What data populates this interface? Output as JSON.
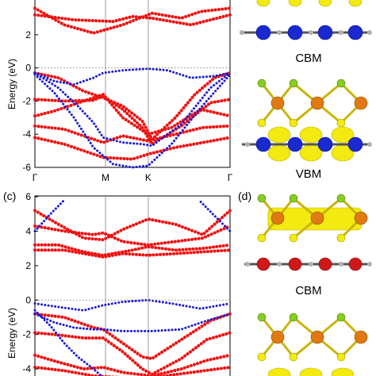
{
  "figure": {
    "panels": {
      "top_left": {
        "label": ""
      },
      "bottom_left": {
        "label": "(c)"
      },
      "bottom_right": {
        "label": "(d)"
      }
    },
    "labels": {
      "top_cbm": "CBM",
      "top_vbm": "VBM",
      "bottom_cbm": "CBM"
    },
    "colors": {
      "red_projection": "#ee1111",
      "blue_projection": "#1a1ad6",
      "atom_blue": "#1a2ad0",
      "atom_red": "#d01818",
      "atom_orange": "#e07a10",
      "atom_green": "#88cc22",
      "atom_gray": "#b0b0b0",
      "isosurface_yellow": "#f2ea10"
    },
    "icons": [
      "atom-structure-illustration",
      "charge-density-isosurface"
    ]
  },
  "chart_data": [
    {
      "type": "line",
      "panel": "top band structure",
      "ylabel": "Energy (eV)",
      "ylim": [
        -6,
        4
      ],
      "yticks": [
        2,
        0,
        -2,
        -4,
        -6
      ],
      "xticks": [
        "Γ",
        "M",
        "K",
        "Γ"
      ],
      "fermi_level": 0,
      "grid": false,
      "series": [
        {
          "color": "red",
          "style": "dots",
          "bands": [
            [
              [
                0,
                3.6
              ],
              [
                0.15,
                2.6
              ],
              [
                0.3,
                2.1
              ],
              [
                0.45,
                2.6
              ],
              [
                0.6,
                3.3
              ],
              [
                0.75,
                3.0
              ],
              [
                0.85,
                3.4
              ],
              [
                1,
                3.6
              ]
            ],
            [
              [
                0,
                3.2
              ],
              [
                0.2,
                2.9
              ],
              [
                0.4,
                2.8
              ],
              [
                0.5,
                3.1
              ],
              [
                0.6,
                3.0
              ],
              [
                0.8,
                2.6
              ],
              [
                1,
                3.2
              ]
            ],
            [
              [
                0,
                -0.3
              ],
              [
                0.12,
                -0.6
              ],
              [
                0.25,
                -1.4
              ],
              [
                0.35,
                -1.8
              ],
              [
                0.45,
                -2.3
              ],
              [
                0.55,
                -3.2
              ],
              [
                0.6,
                -4.3
              ],
              [
                0.72,
                -3.0
              ],
              [
                0.82,
                -1.6
              ],
              [
                0.92,
                -0.6
              ],
              [
                1,
                -0.3
              ]
            ],
            [
              [
                0,
                -1.9
              ],
              [
                0.15,
                -2.0
              ],
              [
                0.3,
                -1.95
              ],
              [
                0.35,
                -1.7
              ],
              [
                0.45,
                -2.5
              ],
              [
                0.55,
                -3.6
              ],
              [
                0.6,
                -4.6
              ],
              [
                0.75,
                -3.5
              ],
              [
                0.9,
                -2.1
              ],
              [
                1,
                -1.9
              ]
            ],
            [
              [
                0,
                -2.9
              ],
              [
                0.1,
                -2.6
              ],
              [
                0.2,
                -2.2
              ],
              [
                0.3,
                -1.8
              ],
              [
                0.35,
                -1.6
              ],
              [
                0.45,
                -3.0
              ],
              [
                0.58,
                -4.0
              ],
              [
                0.7,
                -3.6
              ],
              [
                0.85,
                -2.5
              ],
              [
                1,
                -2.9
              ]
            ],
            [
              [
                0,
                -3.5
              ],
              [
                0.15,
                -3.7
              ],
              [
                0.3,
                -4.3
              ],
              [
                0.35,
                -4.5
              ],
              [
                0.45,
                -4.1
              ],
              [
                0.58,
                -4.4
              ],
              [
                0.72,
                -4.0
              ],
              [
                0.86,
                -3.6
              ],
              [
                1,
                -3.5
              ]
            ],
            [
              [
                0,
                -4.2
              ],
              [
                0.15,
                -4.6
              ],
              [
                0.3,
                -5.2
              ],
              [
                0.35,
                -5.4
              ],
              [
                0.5,
                -5.5
              ],
              [
                0.58,
                -5.2
              ],
              [
                0.72,
                -4.8
              ],
              [
                0.86,
                -4.5
              ],
              [
                1,
                -4.2
              ]
            ]
          ]
        },
        {
          "color": "blue",
          "style": "dots",
          "bands": [
            [
              [
                0,
                -0.3
              ],
              [
                0.1,
                -0.8
              ],
              [
                0.2,
                -1.0
              ],
              [
                0.3,
                -0.6
              ],
              [
                0.35,
                -0.3
              ],
              [
                0.45,
                -0.15
              ],
              [
                0.58,
                -0.05
              ],
              [
                0.68,
                -0.15
              ],
              [
                0.8,
                -0.6
              ],
              [
                0.92,
                -0.5
              ],
              [
                1,
                -0.3
              ]
            ],
            [
              [
                0,
                -0.3
              ],
              [
                0.12,
                -1.2
              ],
              [
                0.22,
                -2.3
              ],
              [
                0.3,
                -3.3
              ],
              [
                0.35,
                -4.2
              ],
              [
                0.45,
                -4.5
              ],
              [
                0.55,
                -4.6
              ],
              [
                0.6,
                -4.7
              ],
              [
                0.75,
                -3.4
              ],
              [
                0.9,
                -1.2
              ],
              [
                1,
                -0.3
              ]
            ],
            [
              [
                0,
                -0.4
              ],
              [
                0.1,
                -1.5
              ],
              [
                0.2,
                -3.0
              ],
              [
                0.3,
                -4.8
              ],
              [
                0.4,
                -5.8
              ],
              [
                0.5,
                -6.0
              ],
              [
                0.58,
                -5.9
              ],
              [
                0.7,
                -4.6
              ],
              [
                0.85,
                -2.4
              ],
              [
                1,
                -0.4
              ]
            ]
          ]
        }
      ]
    },
    {
      "type": "line",
      "panel": "(c)",
      "ylabel": "Energy (eV)",
      "ylim": [
        -4.5,
        6
      ],
      "yticks": [
        6,
        4,
        2,
        0,
        -2,
        -4
      ],
      "xticks": [],
      "fermi_level": 0,
      "grid": false,
      "series": [
        {
          "color": "red",
          "style": "dots",
          "bands": [
            [
              [
                0,
                5.2
              ],
              [
                0.12,
                4.4
              ],
              [
                0.25,
                3.6
              ],
              [
                0.35,
                3.5
              ],
              [
                0.45,
                4.1
              ],
              [
                0.58,
                4.7
              ],
              [
                0.72,
                4.4
              ],
              [
                0.86,
                3.8
              ],
              [
                1,
                5.2
              ]
            ],
            [
              [
                0,
                4.3
              ],
              [
                0.15,
                4.0
              ],
              [
                0.3,
                3.8
              ],
              [
                0.35,
                3.9
              ],
              [
                0.45,
                3.4
              ],
              [
                0.58,
                3.2
              ],
              [
                0.72,
                3.4
              ],
              [
                0.86,
                3.6
              ],
              [
                1,
                4.3
              ]
            ],
            [
              [
                0,
                2.9
              ],
              [
                0.15,
                2.9
              ],
              [
                0.3,
                2.6
              ],
              [
                0.35,
                2.5
              ],
              [
                0.45,
                2.7
              ],
              [
                0.58,
                2.6
              ],
              [
                0.72,
                2.7
              ],
              [
                0.86,
                2.8
              ],
              [
                1,
                2.9
              ]
            ],
            [
              [
                0,
                3.2
              ],
              [
                0.12,
                3.2
              ],
              [
                0.25,
                2.8
              ],
              [
                0.35,
                2.6
              ],
              [
                0.5,
                2.9
              ],
              [
                0.58,
                3.1
              ],
              [
                0.72,
                2.9
              ],
              [
                0.86,
                3.0
              ],
              [
                1,
                3.2
              ]
            ],
            [
              [
                0,
                -0.8
              ],
              [
                0.15,
                -1.0
              ],
              [
                0.3,
                -1.6
              ],
              [
                0.35,
                -1.7
              ],
              [
                0.45,
                -2.5
              ],
              [
                0.55,
                -3.3
              ],
              [
                0.6,
                -3.4
              ],
              [
                0.75,
                -2.3
              ],
              [
                0.9,
                -1.2
              ],
              [
                1,
                -0.8
              ]
            ],
            [
              [
                0,
                -1.9
              ],
              [
                0.1,
                -2.0
              ],
              [
                0.25,
                -2.2
              ],
              [
                0.35,
                -2.2
              ],
              [
                0.45,
                -3.0
              ],
              [
                0.55,
                -4.0
              ],
              [
                0.6,
                -4.3
              ],
              [
                0.75,
                -3.4
              ],
              [
                0.88,
                -2.3
              ],
              [
                1,
                -1.9
              ]
            ],
            [
              [
                0,
                -3.2
              ],
              [
                0.12,
                -3.6
              ],
              [
                0.25,
                -4.0
              ],
              [
                0.35,
                -3.9
              ],
              [
                0.45,
                -4.2
              ],
              [
                0.6,
                -4.4
              ],
              [
                0.75,
                -4.0
              ],
              [
                0.88,
                -3.5
              ],
              [
                1,
                -3.2
              ]
            ],
            [
              [
                0,
                -3.9
              ],
              [
                0.15,
                -4.1
              ],
              [
                0.3,
                -4.4
              ],
              [
                0.45,
                -4.5
              ],
              [
                0.6,
                -4.5
              ],
              [
                0.8,
                -4.2
              ],
              [
                1,
                -3.9
              ]
            ]
          ]
        },
        {
          "color": "blue",
          "style": "dots",
          "bands": [
            [
              [
                0,
                4.0
              ],
              [
                0.08,
                5.0
              ],
              [
                0.15,
                5.8
              ]
            ],
            [
              [
                0.85,
                5.7
              ],
              [
                0.92,
                4.9
              ],
              [
                1,
                4.0
              ]
            ],
            [
              [
                0,
                -0.2
              ],
              [
                0.12,
                -0.4
              ],
              [
                0.25,
                -0.6
              ],
              [
                0.35,
                -0.3
              ],
              [
                0.45,
                -0.1
              ],
              [
                0.58,
                0.0
              ],
              [
                0.7,
                -0.2
              ],
              [
                0.85,
                -0.5
              ],
              [
                1,
                -0.2
              ]
            ],
            [
              [
                0,
                -0.8
              ],
              [
                0.1,
                -1.3
              ],
              [
                0.2,
                -1.6
              ],
              [
                0.3,
                -1.7
              ],
              [
                0.35,
                -1.7
              ],
              [
                0.45,
                -1.8
              ],
              [
                0.55,
                -1.8
              ],
              [
                0.6,
                -1.8
              ],
              [
                0.75,
                -1.7
              ],
              [
                0.88,
                -1.2
              ],
              [
                1,
                -0.8
              ]
            ],
            [
              [
                0,
                -0.6
              ],
              [
                0.08,
                -1.5
              ],
              [
                0.15,
                -2.5
              ],
              [
                0.22,
                -3.3
              ],
              [
                0.3,
                -4.0
              ],
              [
                0.35,
                -4.5
              ]
            ]
          ]
        }
      ]
    }
  ]
}
